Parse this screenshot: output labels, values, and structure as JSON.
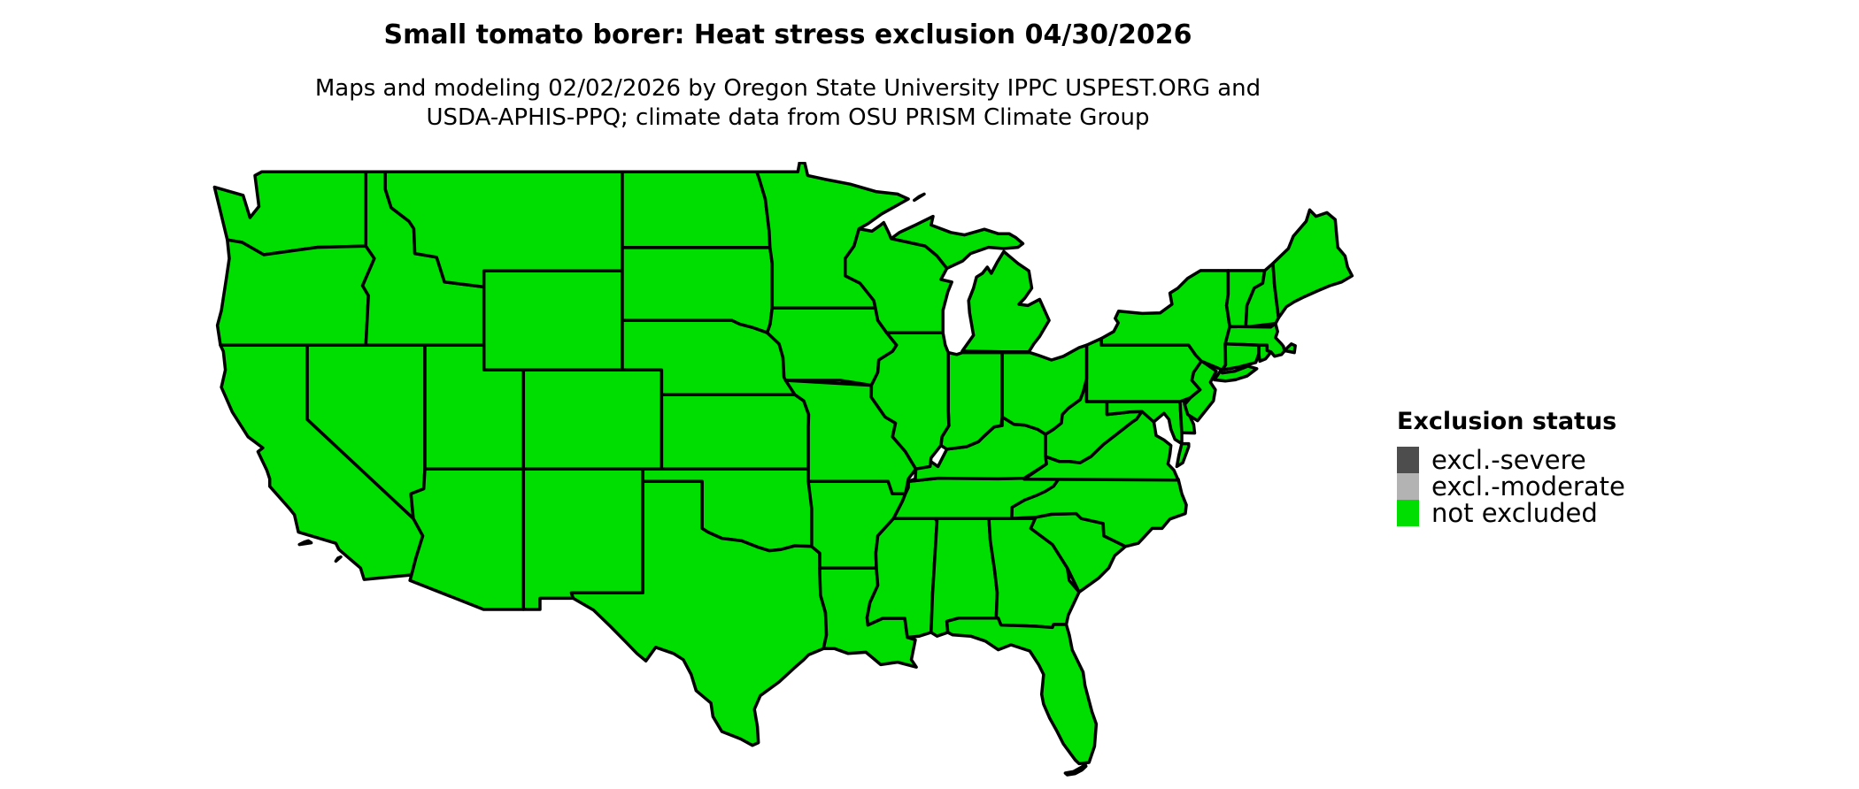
{
  "header": {
    "title": "Small tomato borer: Heat stress exclusion 04/30/2026",
    "subtitle_line1": "Maps and modeling 02/02/2026 by Oregon State University IPPC USPEST.ORG and",
    "subtitle_line2": "USDA-APHIS-PPQ; climate data from OSU PRISM Climate Group"
  },
  "legend": {
    "title": "Exclusion status",
    "items": [
      {
        "label": "excl.-severe",
        "color": "#4d4d4d"
      },
      {
        "label": "excl.-moderate",
        "color": "#b3b3b3"
      },
      {
        "label": "not excluded",
        "color": "#00dd00"
      }
    ]
  },
  "map": {
    "region": "Contiguous United States",
    "status_shown": "not excluded",
    "fill_color": "#00dd00",
    "border_color": "#000000",
    "background_color": "#ffffff"
  }
}
